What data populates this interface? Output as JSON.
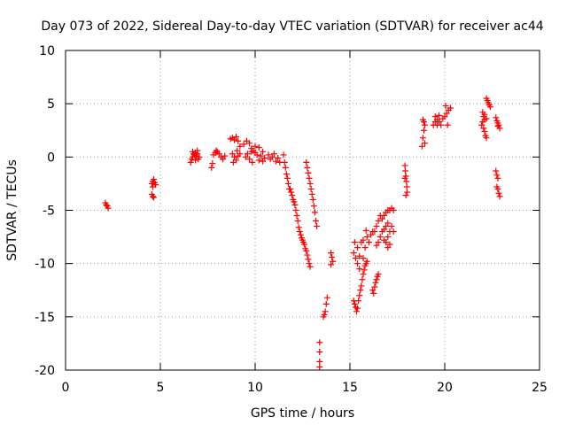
{
  "chart_data": {
    "type": "scatter",
    "title": "Day 073 of 2022, Sidereal Day-to-day VTEC variation (SDTVAR) for receiver ac44",
    "xlabel": "GPS time / hours",
    "ylabel": "SDTVAR / TECUs",
    "xlim": [
      0,
      25
    ],
    "ylim": [
      -20,
      10
    ],
    "xticks": [
      0,
      5,
      10,
      15,
      20,
      25
    ],
    "yticks": [
      -20,
      -15,
      -10,
      -5,
      0,
      5,
      10
    ],
    "grid": true,
    "marker": "+",
    "colors": {
      "series": "#ff0000",
      "grid": "#a0a0a0",
      "axes": "#000000"
    },
    "series": [
      {
        "name": "SDTVAR",
        "points": [
          [
            2.1,
            -4.3
          ],
          [
            2.15,
            -4.5
          ],
          [
            2.2,
            -4.6
          ],
          [
            2.25,
            -4.8
          ],
          [
            4.55,
            -3.5
          ],
          [
            4.6,
            -3.7
          ],
          [
            4.65,
            -3.8
          ],
          [
            4.55,
            -2.5
          ],
          [
            4.6,
            -2.3
          ],
          [
            4.65,
            -2.1
          ],
          [
            4.7,
            -2.4
          ],
          [
            4.75,
            -2.6
          ],
          [
            4.6,
            -2.8
          ],
          [
            6.6,
            -0.5
          ],
          [
            6.65,
            -0.2
          ],
          [
            6.7,
            0.0
          ],
          [
            6.75,
            0.3
          ],
          [
            6.8,
            0.2
          ],
          [
            6.85,
            0.4
          ],
          [
            6.9,
            0.1
          ],
          [
            6.95,
            0.3
          ],
          [
            7.0,
            -0.2
          ],
          [
            6.7,
            0.5
          ],
          [
            6.85,
            -0.3
          ],
          [
            6.95,
            0.6
          ],
          [
            7.05,
            0.0
          ],
          [
            7.7,
            -1.0
          ],
          [
            7.75,
            -0.6
          ],
          [
            7.8,
            0.2
          ],
          [
            7.9,
            0.4
          ],
          [
            7.95,
            0.6
          ],
          [
            8.0,
            0.5
          ],
          [
            8.1,
            0.3
          ],
          [
            8.2,
            0.0
          ],
          [
            8.3,
            -0.2
          ],
          [
            8.4,
            0.1
          ],
          [
            8.7,
            1.7
          ],
          [
            8.8,
            1.8
          ],
          [
            8.9,
            1.6
          ],
          [
            9.0,
            1.9
          ],
          [
            9.1,
            1.5
          ],
          [
            9.2,
            1.0
          ],
          [
            8.8,
            0.3
          ],
          [
            8.9,
            0.0
          ],
          [
            9.0,
            -0.3
          ],
          [
            9.1,
            0.1
          ],
          [
            9.2,
            0.3
          ],
          [
            8.85,
            -0.5
          ],
          [
            9.05,
            0.6
          ],
          [
            9.5,
            0.0
          ],
          [
            9.6,
            0.3
          ],
          [
            9.7,
            -0.2
          ],
          [
            9.8,
            0.5
          ],
          [
            9.4,
            1.2
          ],
          [
            9.55,
            1.5
          ],
          [
            9.7,
            1.3
          ],
          [
            9.8,
            0.8
          ],
          [
            9.9,
            0.6
          ],
          [
            10.0,
            0.4
          ],
          [
            10.1,
            0.2
          ],
          [
            10.2,
            -0.3
          ],
          [
            10.3,
            0.1
          ],
          [
            10.4,
            0.5
          ],
          [
            10.5,
            -0.1
          ],
          [
            10.0,
            1.0
          ],
          [
            10.2,
            0.9
          ],
          [
            9.85,
            -0.5
          ],
          [
            10.4,
            -0.4
          ],
          [
            10.7,
            0.2
          ],
          [
            10.8,
            -0.2
          ],
          [
            10.9,
            0.0
          ],
          [
            11.0,
            0.3
          ],
          [
            11.1,
            -0.4
          ],
          [
            11.2,
            -0.1
          ],
          [
            11.3,
            -0.5
          ],
          [
            11.5,
            0.2
          ],
          [
            11.55,
            -0.5
          ],
          [
            11.6,
            -1.0
          ],
          [
            11.65,
            -1.6
          ],
          [
            11.7,
            -2.0
          ],
          [
            11.75,
            -2.5
          ],
          [
            11.8,
            -3.0
          ],
          [
            11.85,
            -3.0
          ],
          [
            11.9,
            -3.3
          ],
          [
            11.95,
            -3.6
          ],
          [
            12.0,
            -4.0
          ],
          [
            12.05,
            -4.2
          ],
          [
            12.1,
            -4.5
          ],
          [
            12.15,
            -5.0
          ],
          [
            12.2,
            -5.5
          ],
          [
            12.25,
            -6.0
          ],
          [
            12.3,
            -6.6
          ],
          [
            12.35,
            -7.0
          ],
          [
            12.4,
            -7.3
          ],
          [
            12.45,
            -7.6
          ],
          [
            12.5,
            -7.8
          ],
          [
            12.55,
            -8.0
          ],
          [
            12.6,
            -8.2
          ],
          [
            12.65,
            -8.6
          ],
          [
            12.7,
            -8.8
          ],
          [
            12.75,
            -9.2
          ],
          [
            12.8,
            -9.6
          ],
          [
            12.85,
            -10.0
          ],
          [
            12.9,
            -10.3
          ],
          [
            12.7,
            -0.5
          ],
          [
            12.75,
            -1.0
          ],
          [
            12.8,
            -1.5
          ],
          [
            12.85,
            -2.0
          ],
          [
            12.9,
            -2.5
          ],
          [
            12.95,
            -3.0
          ],
          [
            13.0,
            -3.5
          ],
          [
            13.05,
            -4.0
          ],
          [
            13.1,
            -4.6
          ],
          [
            13.15,
            -5.2
          ],
          [
            13.2,
            -6.0
          ],
          [
            13.25,
            -6.5
          ],
          [
            13.4,
            -17.4
          ],
          [
            13.4,
            -18.3
          ],
          [
            13.4,
            -19.2
          ],
          [
            13.4,
            -19.7
          ],
          [
            13.6,
            -15.0
          ],
          [
            13.65,
            -14.8
          ],
          [
            13.7,
            -14.5
          ],
          [
            13.75,
            -13.8
          ],
          [
            13.8,
            -13.2
          ],
          [
            14.0,
            -9.0
          ],
          [
            14.05,
            -9.4
          ],
          [
            14.1,
            -9.8
          ],
          [
            14.0,
            -10.1
          ],
          [
            15.2,
            -13.5
          ],
          [
            15.25,
            -13.8
          ],
          [
            15.3,
            -14.1
          ],
          [
            15.35,
            -14.5
          ],
          [
            15.4,
            -14.2
          ],
          [
            15.45,
            -13.5
          ],
          [
            15.5,
            -13.0
          ],
          [
            15.55,
            -12.5
          ],
          [
            15.6,
            -12.1
          ],
          [
            15.65,
            -11.5
          ],
          [
            15.7,
            -11.0
          ],
          [
            15.75,
            -10.6
          ],
          [
            15.8,
            -10.2
          ],
          [
            15.85,
            -10.0
          ],
          [
            15.9,
            -9.8
          ],
          [
            15.2,
            -9.0
          ],
          [
            15.3,
            -9.5
          ],
          [
            15.4,
            -8.5
          ],
          [
            15.5,
            -9.3
          ],
          [
            15.6,
            -8.0
          ],
          [
            15.7,
            -7.8
          ],
          [
            15.8,
            -8.5
          ],
          [
            15.9,
            -7.5
          ],
          [
            16.0,
            -8.0
          ],
          [
            16.1,
            -7.3
          ],
          [
            16.2,
            -7.0
          ],
          [
            15.4,
            -10.0
          ],
          [
            15.5,
            -10.5
          ],
          [
            15.7,
            -9.5
          ],
          [
            15.25,
            -8.0
          ],
          [
            15.85,
            -6.9
          ],
          [
            16.2,
            -12.5
          ],
          [
            16.25,
            -12.8
          ],
          [
            16.3,
            -12.2
          ],
          [
            16.35,
            -11.8
          ],
          [
            16.4,
            -11.5
          ],
          [
            16.45,
            -11.2
          ],
          [
            16.5,
            -11.0
          ],
          [
            16.4,
            -8.3
          ],
          [
            16.5,
            -8.0
          ],
          [
            16.6,
            -7.5
          ],
          [
            16.7,
            -7.0
          ],
          [
            16.8,
            -6.8
          ],
          [
            16.9,
            -6.5
          ],
          [
            17.0,
            -6.2
          ],
          [
            16.3,
            -7.0
          ],
          [
            16.4,
            -6.5
          ],
          [
            16.5,
            -6.0
          ],
          [
            16.6,
            -5.5
          ],
          [
            16.7,
            -5.8
          ],
          [
            16.8,
            -5.5
          ],
          [
            16.9,
            -5.2
          ],
          [
            17.0,
            -5.0
          ],
          [
            17.1,
            -5.0
          ],
          [
            17.2,
            -4.8
          ],
          [
            17.3,
            -5.0
          ],
          [
            16.9,
            -8.0
          ],
          [
            17.0,
            -7.5
          ],
          [
            17.1,
            -7.0
          ],
          [
            17.2,
            -6.5
          ],
          [
            17.3,
            -7.0
          ],
          [
            17.0,
            -8.5
          ],
          [
            17.1,
            -8.2
          ],
          [
            16.8,
            -7.8
          ],
          [
            17.9,
            -0.8
          ],
          [
            17.92,
            -1.3
          ],
          [
            17.95,
            -1.8
          ],
          [
            17.98,
            -2.3
          ],
          [
            18.0,
            -2.8
          ],
          [
            18.02,
            -3.3
          ],
          [
            17.95,
            -3.6
          ],
          [
            17.9,
            -2.0
          ],
          [
            18.8,
            1.0
          ],
          [
            18.85,
            1.8
          ],
          [
            18.9,
            2.5
          ],
          [
            18.95,
            3.0
          ],
          [
            18.9,
            3.3
          ],
          [
            18.85,
            3.5
          ],
          [
            18.95,
            1.3
          ],
          [
            19.4,
            3.0
          ],
          [
            19.5,
            3.3
          ],
          [
            19.6,
            3.5
          ],
          [
            19.7,
            3.3
          ],
          [
            19.8,
            3.0
          ],
          [
            19.9,
            3.6
          ],
          [
            20.0,
            3.8
          ],
          [
            20.1,
            4.1
          ],
          [
            20.2,
            4.4
          ],
          [
            20.3,
            4.6
          ],
          [
            19.5,
            3.8
          ],
          [
            19.7,
            3.9
          ],
          [
            20.15,
            3.0
          ],
          [
            20.05,
            4.8
          ],
          [
            19.6,
            3.0
          ],
          [
            22.0,
            4.2
          ],
          [
            22.05,
            3.8
          ],
          [
            22.1,
            3.5
          ],
          [
            22.0,
            3.3
          ],
          [
            21.95,
            3.0
          ],
          [
            22.05,
            2.7
          ],
          [
            22.1,
            2.4
          ],
          [
            22.15,
            2.0
          ],
          [
            22.2,
            1.8
          ],
          [
            22.1,
            4.0
          ],
          [
            22.2,
            3.6
          ],
          [
            22.2,
            5.5
          ],
          [
            22.25,
            5.3
          ],
          [
            22.3,
            5.1
          ],
          [
            22.35,
            4.9
          ],
          [
            22.4,
            4.7
          ],
          [
            22.7,
            3.7
          ],
          [
            22.75,
            3.4
          ],
          [
            22.8,
            3.2
          ],
          [
            22.85,
            3.0
          ],
          [
            22.9,
            2.7
          ],
          [
            22.8,
            2.9
          ],
          [
            22.7,
            -1.3
          ],
          [
            22.75,
            -1.7
          ],
          [
            22.8,
            -2.0
          ],
          [
            22.75,
            -2.8
          ],
          [
            22.8,
            -3.0
          ],
          [
            22.85,
            -3.4
          ],
          [
            22.9,
            -3.7
          ]
        ]
      }
    ]
  }
}
